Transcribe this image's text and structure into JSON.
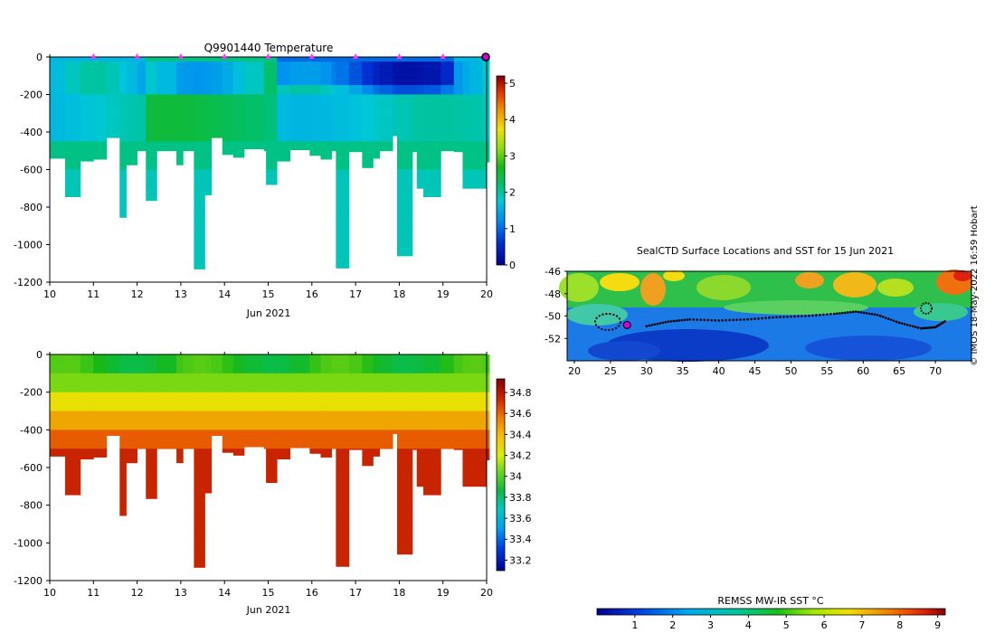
{
  "chart_data": [
    {
      "type": "heatmap",
      "title": "Q9901440  Temperature",
      "xlabel": "Jun 2021",
      "xlim": [
        10,
        20
      ],
      "ylim": [
        -1200,
        0
      ],
      "x_ticks": [
        "10",
        "11",
        "12",
        "13",
        "14",
        "15",
        "16",
        "17",
        "18",
        "19",
        "20"
      ],
      "y_ticks": [
        "0",
        "-200",
        "-400",
        "-600",
        "-800",
        "-1000",
        "-1200"
      ],
      "marker_days": [
        11,
        12,
        13,
        14,
        15,
        16,
        17,
        18,
        19,
        20
      ],
      "colorbar": {
        "min": 0,
        "max": 5.2,
        "ticks": [
          "0",
          "1",
          "2",
          "3",
          "4",
          "5"
        ]
      },
      "profiles": [
        {
          "day": 10.0,
          "depth": 540
        },
        {
          "day": 10.35,
          "depth": 745
        },
        {
          "day": 10.7,
          "depth": 555
        },
        {
          "day": 11.0,
          "depth": 545
        },
        {
          "day": 11.3,
          "depth": 430
        },
        {
          "day": 11.6,
          "depth": 855
        },
        {
          "day": 11.75,
          "depth": 575
        },
        {
          "day": 12.0,
          "depth": 500
        },
        {
          "day": 12.2,
          "depth": 765
        },
        {
          "day": 12.45,
          "depth": 500
        },
        {
          "day": 12.9,
          "depth": 575
        },
        {
          "day": 13.05,
          "depth": 500
        },
        {
          "day": 13.3,
          "depth": 1130
        },
        {
          "day": 13.55,
          "depth": 735
        },
        {
          "day": 13.7,
          "depth": 430
        },
        {
          "day": 13.95,
          "depth": 520
        },
        {
          "day": 14.2,
          "depth": 535
        },
        {
          "day": 14.45,
          "depth": 490
        },
        {
          "day": 14.9,
          "depth": 500
        },
        {
          "day": 14.95,
          "depth": 680
        },
        {
          "day": 15.2,
          "depth": 555
        },
        {
          "day": 15.5,
          "depth": 495
        },
        {
          "day": 15.95,
          "depth": 525
        },
        {
          "day": 16.2,
          "depth": 545
        },
        {
          "day": 16.45,
          "depth": 500
        },
        {
          "day": 16.55,
          "depth": 1125
        },
        {
          "day": 16.85,
          "depth": 505
        },
        {
          "day": 17.15,
          "depth": 590
        },
        {
          "day": 17.4,
          "depth": 540
        },
        {
          "day": 17.55,
          "depth": 500
        },
        {
          "day": 17.85,
          "depth": 420
        },
        {
          "day": 17.95,
          "depth": 1060
        },
        {
          "day": 18.3,
          "depth": 505
        },
        {
          "day": 18.4,
          "depth": 700
        },
        {
          "day": 18.55,
          "depth": 745
        },
        {
          "day": 18.95,
          "depth": 500
        },
        {
          "day": 19.25,
          "depth": 505
        },
        {
          "day": 19.45,
          "depth": 700
        },
        {
          "day": 19.6,
          "depth": 700
        },
        {
          "day": 19.9,
          "depth": 700
        },
        {
          "day": 20.0,
          "depth": 560
        }
      ]
    },
    {
      "type": "heatmap",
      "title": "",
      "xlabel": "Jun 2021",
      "xlim": [
        10,
        20
      ],
      "ylim": [
        -1200,
        0
      ],
      "x_ticks": [
        "10",
        "11",
        "12",
        "13",
        "14",
        "15",
        "16",
        "17",
        "18",
        "19",
        "20"
      ],
      "y_ticks": [
        "0",
        "-200",
        "-400",
        "-600",
        "-800",
        "-1000",
        "-1200"
      ],
      "colorbar": {
        "min": 33.1,
        "max": 34.93,
        "ticks": [
          "33.2",
          "33.4",
          "33.6",
          "33.8",
          "34",
          "34.2",
          "34.4",
          "34.6",
          "34.8"
        ]
      }
    },
    {
      "type": "scatter",
      "title": "SealCTD Surface Locations and SST for 15 Jun 2021",
      "xlim": [
        19,
        75
      ],
      "ylim": [
        -54,
        -46
      ],
      "x_ticks": [
        "20",
        "25",
        "30",
        "35",
        "40",
        "45",
        "50",
        "55",
        "60",
        "65",
        "70"
      ],
      "y_ticks": [
        "-46",
        "-48",
        "-50",
        "-52"
      ],
      "colorbar_label": "REMSS MW-IR SST °C",
      "colorbar": {
        "min": 0,
        "max": 9.2,
        "ticks": [
          "1",
          "2",
          "3",
          "4",
          "5",
          "6",
          "7",
          "8",
          "9"
        ]
      },
      "track": [
        {
          "lon": 30,
          "lat": -50.9
        },
        {
          "lon": 33,
          "lat": -50.5
        },
        {
          "lon": 36,
          "lat": -50.3
        },
        {
          "lon": 40,
          "lat": -50.4
        },
        {
          "lon": 44,
          "lat": -50.3
        },
        {
          "lon": 48,
          "lat": -50.1
        },
        {
          "lon": 52,
          "lat": -50.0
        },
        {
          "lon": 56,
          "lat": -49.8
        },
        {
          "lon": 59,
          "lat": -49.6
        },
        {
          "lon": 62,
          "lat": -49.9
        },
        {
          "lon": 65,
          "lat": -50.6
        },
        {
          "lon": 68,
          "lat": -51.1
        },
        {
          "lon": 70,
          "lat": -51.0
        },
        {
          "lon": 71.5,
          "lat": -50.4
        }
      ],
      "current_position": {
        "lon": 27.3,
        "lat": -50.8
      }
    }
  ],
  "credit": "© IMOS 18-May-2022 16:59 Hobart"
}
